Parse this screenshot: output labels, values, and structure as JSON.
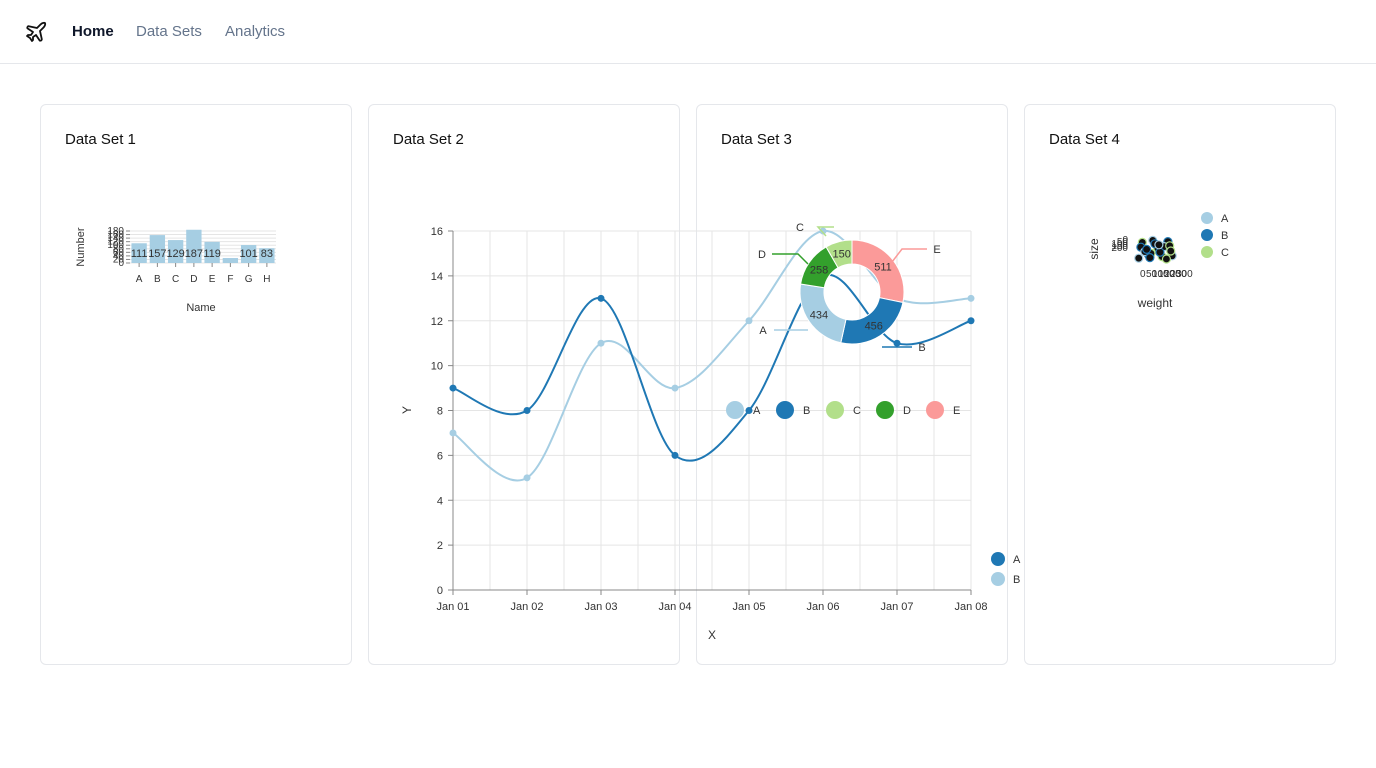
{
  "nav": {
    "logo_icon": "airplane-icon",
    "items": [
      {
        "label": "Home",
        "active": true
      },
      {
        "label": "Data Sets",
        "active": false
      },
      {
        "label": "Analytics",
        "active": false
      }
    ]
  },
  "cards": [
    {
      "title": "Data Set 1"
    },
    {
      "title": "Data Set 2"
    },
    {
      "title": "Data Set 3"
    },
    {
      "title": "Data Set 4"
    }
  ],
  "colors": {
    "light_blue": "#a6cee3",
    "dark_blue": "#1f78b4",
    "light_green": "#b2df8a",
    "dark_green": "#33a02c",
    "pink": "#fb9a99"
  },
  "chart_data": [
    {
      "type": "bar",
      "categories": [
        "A",
        "B",
        "C",
        "D",
        "E",
        "F",
        "G",
        "H"
      ],
      "values": [
        111,
        157,
        129,
        187,
        119,
        28,
        101,
        83
      ],
      "data_labels": [
        "111",
        "157",
        "129",
        "187",
        "119",
        "",
        "101",
        "83"
      ],
      "xlabel": "Name",
      "ylabel": "Number",
      "ylim": [
        0,
        180
      ],
      "ytick_labels": [
        "0",
        "20",
        "40",
        "60",
        "80",
        "100",
        "120",
        "140",
        "160",
        "180"
      ],
      "grid": true
    },
    {
      "type": "line",
      "x": [
        "Jan 01",
        "Jan 02",
        "Jan 03",
        "Jan 04",
        "Jan 05",
        "Jan 06",
        "Jan 07",
        "Jan 08"
      ],
      "series": [
        {
          "name": "A",
          "color": "#1f78b4",
          "values": [
            9,
            8,
            13,
            6,
            8,
            14,
            11,
            12
          ]
        },
        {
          "name": "B",
          "color": "#a6cee3",
          "values": [
            7,
            5,
            11,
            9,
            12,
            16,
            13,
            13
          ]
        }
      ],
      "xlabel": "X",
      "ylabel": "Y",
      "ylim": [
        0,
        16
      ],
      "ytick_labels": [
        "0",
        "2",
        "4",
        "6",
        "8",
        "10",
        "12",
        "14",
        "16"
      ],
      "grid": true,
      "legend_position": "right"
    },
    {
      "type": "pie",
      "donut": true,
      "slices": [
        {
          "label": "A",
          "value": 434,
          "color": "#a6cee3"
        },
        {
          "label": "B",
          "value": 456,
          "color": "#1f78b4"
        },
        {
          "label": "C",
          "value": 150,
          "color": "#b2df8a"
        },
        {
          "label": "D",
          "value": 258,
          "color": "#33a02c"
        },
        {
          "label": "E",
          "value": 511,
          "color": "#fb9a99"
        }
      ],
      "legend_position": "bottom"
    },
    {
      "type": "scatter",
      "xlabel": "weight",
      "ylabel": "size",
      "legend": [
        {
          "name": "A",
          "color": "#a6cee3"
        },
        {
          "name": "B",
          "color": "#1f78b4"
        },
        {
          "name": "C",
          "color": "#b2df8a"
        }
      ],
      "legend_position": "top-right"
    }
  ]
}
